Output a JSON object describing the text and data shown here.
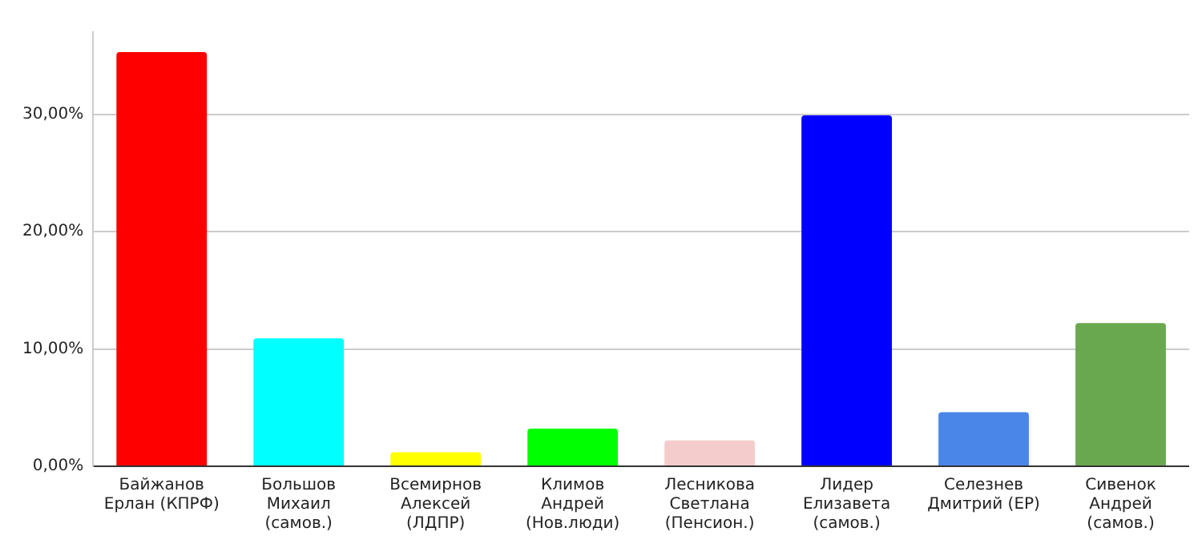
{
  "chart_data": {
    "type": "bar",
    "categories": [
      "Байжанов\nЕрлан (КПРФ)",
      "Большов\nМихаил\n(самов.)",
      "Всемирнов\nАлексей\n(ЛДПР)",
      "Климов\nАндрей\n(Нов.люди)",
      "Лесникова\nСветлана\n(Пенсион.)",
      "Лидер\nЕлизавета\n(самов.)",
      "Селезнев\nДмитрий (ЕР)",
      "Сивенок\nАндрей\n(самов.)"
    ],
    "values": [
      35.3,
      10.9,
      1.2,
      3.2,
      2.2,
      29.9,
      4.6,
      12.2
    ],
    "colors": [
      "#ff0000",
      "#00ffff",
      "#ffff00",
      "#00ff00",
      "#f4cccc",
      "#0000ff",
      "#4a86e8",
      "#6aa84f"
    ],
    "ylim": [
      0,
      37
    ],
    "yticks": [
      {
        "value": 0,
        "label": "0,00%"
      },
      {
        "value": 10,
        "label": "10,00%"
      },
      {
        "value": 20,
        "label": "20,00%"
      },
      {
        "value": 30,
        "label": "30,00%"
      }
    ],
    "grid": "y",
    "legend": false
  }
}
